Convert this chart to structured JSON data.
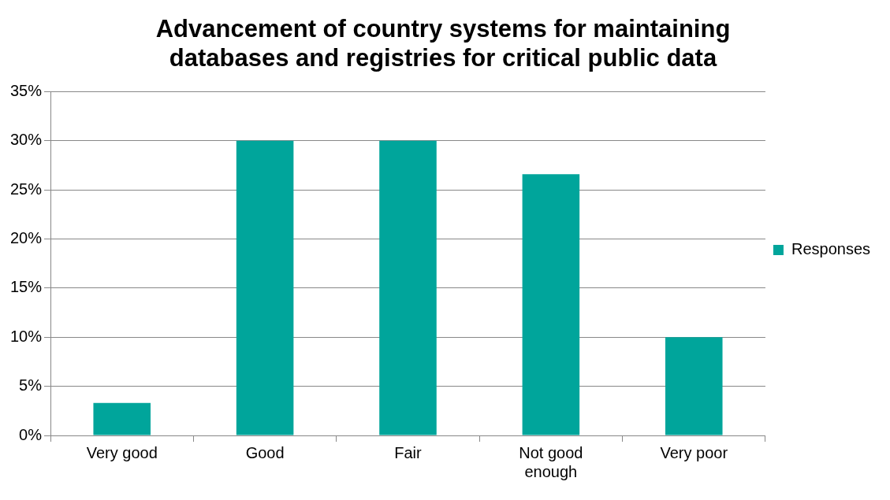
{
  "chart_data": {
    "type": "bar",
    "title": "Advancement of country systems for maintaining databases and registries for critical public data",
    "categories": [
      "Very good",
      "Good",
      "Fair",
      "Not good enough",
      "Very poor"
    ],
    "series": [
      {
        "name": "Responses",
        "color": "#00a59b",
        "values": [
          3.3,
          30,
          30,
          26.6,
          10
        ]
      }
    ],
    "ylim": [
      0,
      35
    ],
    "yticks": [
      {
        "value": 0,
        "label": "0%"
      },
      {
        "value": 5,
        "label": "5%"
      },
      {
        "value": 10,
        "label": "10%"
      },
      {
        "value": 15,
        "label": "15%"
      },
      {
        "value": 20,
        "label": "20%"
      },
      {
        "value": 25,
        "label": "25%"
      },
      {
        "value": 30,
        "label": "30%"
      },
      {
        "value": 35,
        "label": "35%"
      }
    ],
    "grid": "y",
    "legend": "right"
  }
}
